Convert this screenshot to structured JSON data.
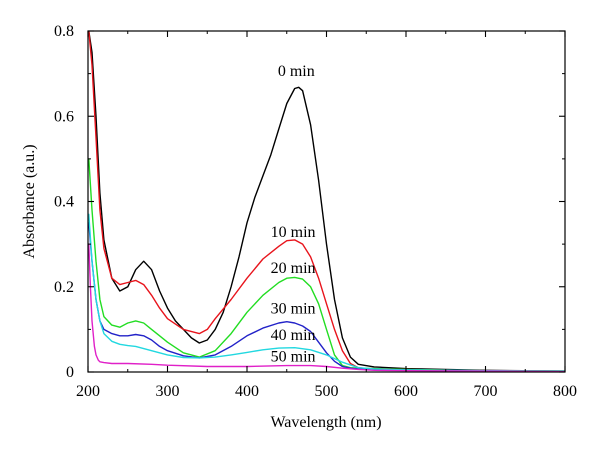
{
  "chart_data": {
    "type": "line",
    "title": "",
    "xlabel": "Wavelength (nm)",
    "ylabel": "Absorbance (a.u.)",
    "xlim": [
      200,
      800
    ],
    "ylim": [
      0,
      0.8
    ],
    "xticks": [
      200,
      300,
      400,
      500,
      600,
      700,
      800
    ],
    "yticks": [
      0,
      0.2,
      0.4,
      0.6,
      0.8
    ],
    "xtick_labels": [
      "200",
      "300",
      "400",
      "500",
      "600",
      "700",
      "800"
    ],
    "ytick_labels": [
      "0",
      "0.2",
      "0.4",
      "0.6",
      "0.8"
    ],
    "grid": false,
    "legend": "none",
    "annotations": [
      {
        "text": "0 min",
        "x": 462,
        "y": 0.695,
        "series": 0
      },
      {
        "text": "10 min",
        "x": 458,
        "y": 0.317,
        "series": 1
      },
      {
        "text": "20 min",
        "x": 458,
        "y": 0.232,
        "series": 2
      },
      {
        "text": "30 min",
        "x": 458,
        "y": 0.137,
        "series": 3
      },
      {
        "text": "40 min",
        "x": 458,
        "y": 0.075,
        "series": 4
      },
      {
        "text": "50 min",
        "x": 458,
        "y": 0.025,
        "series": 5
      }
    ],
    "series": [
      {
        "color": "#000000",
        "x": [
          201,
          205,
          210,
          215,
          220,
          230,
          240,
          250,
          260,
          270,
          280,
          290,
          300,
          310,
          320,
          330,
          340,
          350,
          360,
          370,
          380,
          390,
          400,
          410,
          420,
          430,
          440,
          450,
          460,
          465,
          470,
          480,
          490,
          500,
          510,
          520,
          530,
          540,
          560,
          600,
          700,
          800
        ],
        "y": [
          0.8,
          0.75,
          0.6,
          0.42,
          0.31,
          0.22,
          0.19,
          0.2,
          0.24,
          0.26,
          0.24,
          0.19,
          0.15,
          0.12,
          0.1,
          0.08,
          0.068,
          0.075,
          0.1,
          0.14,
          0.2,
          0.27,
          0.35,
          0.41,
          0.46,
          0.51,
          0.57,
          0.63,
          0.665,
          0.668,
          0.66,
          0.58,
          0.45,
          0.3,
          0.17,
          0.08,
          0.035,
          0.018,
          0.012,
          0.008,
          0.004,
          0.002
        ]
      },
      {
        "color": "#e8141c",
        "x": [
          201,
          205,
          210,
          215,
          220,
          230,
          240,
          250,
          260,
          270,
          280,
          290,
          300,
          320,
          340,
          350,
          360,
          380,
          400,
          420,
          440,
          450,
          460,
          470,
          480,
          490,
          500,
          510,
          520,
          530,
          540,
          550,
          560,
          600,
          700,
          800
        ],
        "y": [
          0.8,
          0.72,
          0.55,
          0.38,
          0.29,
          0.22,
          0.205,
          0.21,
          0.215,
          0.205,
          0.18,
          0.15,
          0.125,
          0.1,
          0.09,
          0.1,
          0.125,
          0.17,
          0.22,
          0.265,
          0.295,
          0.308,
          0.31,
          0.3,
          0.27,
          0.22,
          0.16,
          0.1,
          0.05,
          0.02,
          0.01,
          0.008,
          0.008,
          0.006,
          0.003,
          0.002
        ]
      },
      {
        "color": "#22dd22",
        "x": [
          201,
          205,
          210,
          215,
          220,
          230,
          240,
          250,
          260,
          270,
          280,
          290,
          300,
          320,
          340,
          360,
          380,
          400,
          420,
          440,
          450,
          460,
          470,
          480,
          490,
          500,
          510,
          520,
          530,
          540,
          560,
          600,
          700,
          800
        ],
        "y": [
          0.5,
          0.38,
          0.26,
          0.17,
          0.13,
          0.11,
          0.105,
          0.115,
          0.12,
          0.115,
          0.1,
          0.085,
          0.07,
          0.045,
          0.035,
          0.05,
          0.09,
          0.14,
          0.18,
          0.21,
          0.22,
          0.222,
          0.218,
          0.2,
          0.16,
          0.1,
          0.04,
          0.015,
          0.01,
          0.009,
          0.008,
          0.006,
          0.003,
          0.002
        ]
      },
      {
        "color": "#2222c8",
        "x": [
          201,
          205,
          210,
          215,
          220,
          230,
          240,
          250,
          260,
          270,
          280,
          290,
          300,
          320,
          340,
          360,
          380,
          400,
          420,
          440,
          450,
          460,
          470,
          480,
          490,
          500,
          510,
          520,
          530,
          540,
          560,
          600,
          700,
          750,
          800
        ],
        "y": [
          0.35,
          0.26,
          0.17,
          0.12,
          0.1,
          0.09,
          0.085,
          0.085,
          0.088,
          0.085,
          0.075,
          0.06,
          0.05,
          0.038,
          0.033,
          0.04,
          0.06,
          0.085,
          0.103,
          0.115,
          0.118,
          0.115,
          0.108,
          0.095,
          0.07,
          0.045,
          0.025,
          0.013,
          0.009,
          0.007,
          0.006,
          0.005,
          0.003,
          0.001,
          0.0
        ]
      },
      {
        "color": "#22d8e0",
        "x": [
          201,
          205,
          210,
          215,
          220,
          230,
          240,
          250,
          260,
          280,
          300,
          320,
          340,
          360,
          380,
          400,
          420,
          440,
          460,
          480,
          500,
          520,
          540,
          560,
          600,
          700,
          800
        ],
        "y": [
          0.37,
          0.26,
          0.17,
          0.12,
          0.09,
          0.072,
          0.065,
          0.062,
          0.06,
          0.05,
          0.04,
          0.034,
          0.033,
          0.035,
          0.04,
          0.046,
          0.052,
          0.056,
          0.057,
          0.052,
          0.04,
          0.023,
          0.01,
          0.007,
          0.005,
          0.003,
          0.002
        ]
      },
      {
        "color": "#e020c8",
        "x": [
          201,
          203,
          205,
          208,
          210,
          213,
          215,
          220,
          230,
          250,
          280,
          300,
          350,
          400,
          450,
          480,
          500,
          520,
          540,
          560,
          600,
          700,
          800
        ],
        "y": [
          0.3,
          0.2,
          0.12,
          0.06,
          0.04,
          0.028,
          0.024,
          0.022,
          0.02,
          0.02,
          0.018,
          0.016,
          0.013,
          0.013,
          0.015,
          0.015,
          0.013,
          0.009,
          0.006,
          0.004,
          0.003,
          0.002,
          0.001
        ]
      }
    ]
  }
}
